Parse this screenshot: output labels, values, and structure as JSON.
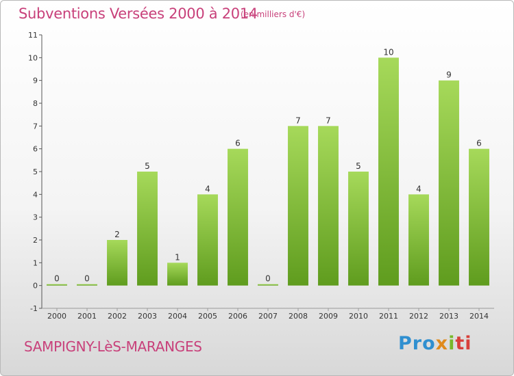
{
  "header": {
    "title": "Subventions Versées 2000 à 2014",
    "unit": "(en milliers d'€)"
  },
  "footer": {
    "commune": "SAMPIGNY-LèS-MARANGES",
    "logo": {
      "p1": "Pro",
      "p2": "x",
      "p3": "i",
      "p4": "ti"
    }
  },
  "colors": {
    "accent": "#c8407a",
    "bar_light": "#a6d95a",
    "bar_dark": "#5f9c1e",
    "axis": "#555555"
  },
  "chart_data": {
    "type": "bar",
    "title": "Subventions Versées 2000 à 2014",
    "ylabel": "",
    "xlabel": "",
    "categories": [
      "2000",
      "2001",
      "2002",
      "2003",
      "2004",
      "2005",
      "2006",
      "2007",
      "2008",
      "2009",
      "2010",
      "2011",
      "2012",
      "2013",
      "2014"
    ],
    "values": [
      0,
      0,
      2,
      5,
      1,
      4,
      6,
      0,
      7,
      7,
      5,
      10,
      4,
      9,
      6
    ],
    "ylim": [
      -1,
      11
    ],
    "yticks": [
      "-1",
      "0",
      "1",
      "2",
      "3",
      "4",
      "5",
      "6",
      "7",
      "8",
      "9",
      "10",
      "11"
    ],
    "grid": false,
    "legend": "none"
  }
}
